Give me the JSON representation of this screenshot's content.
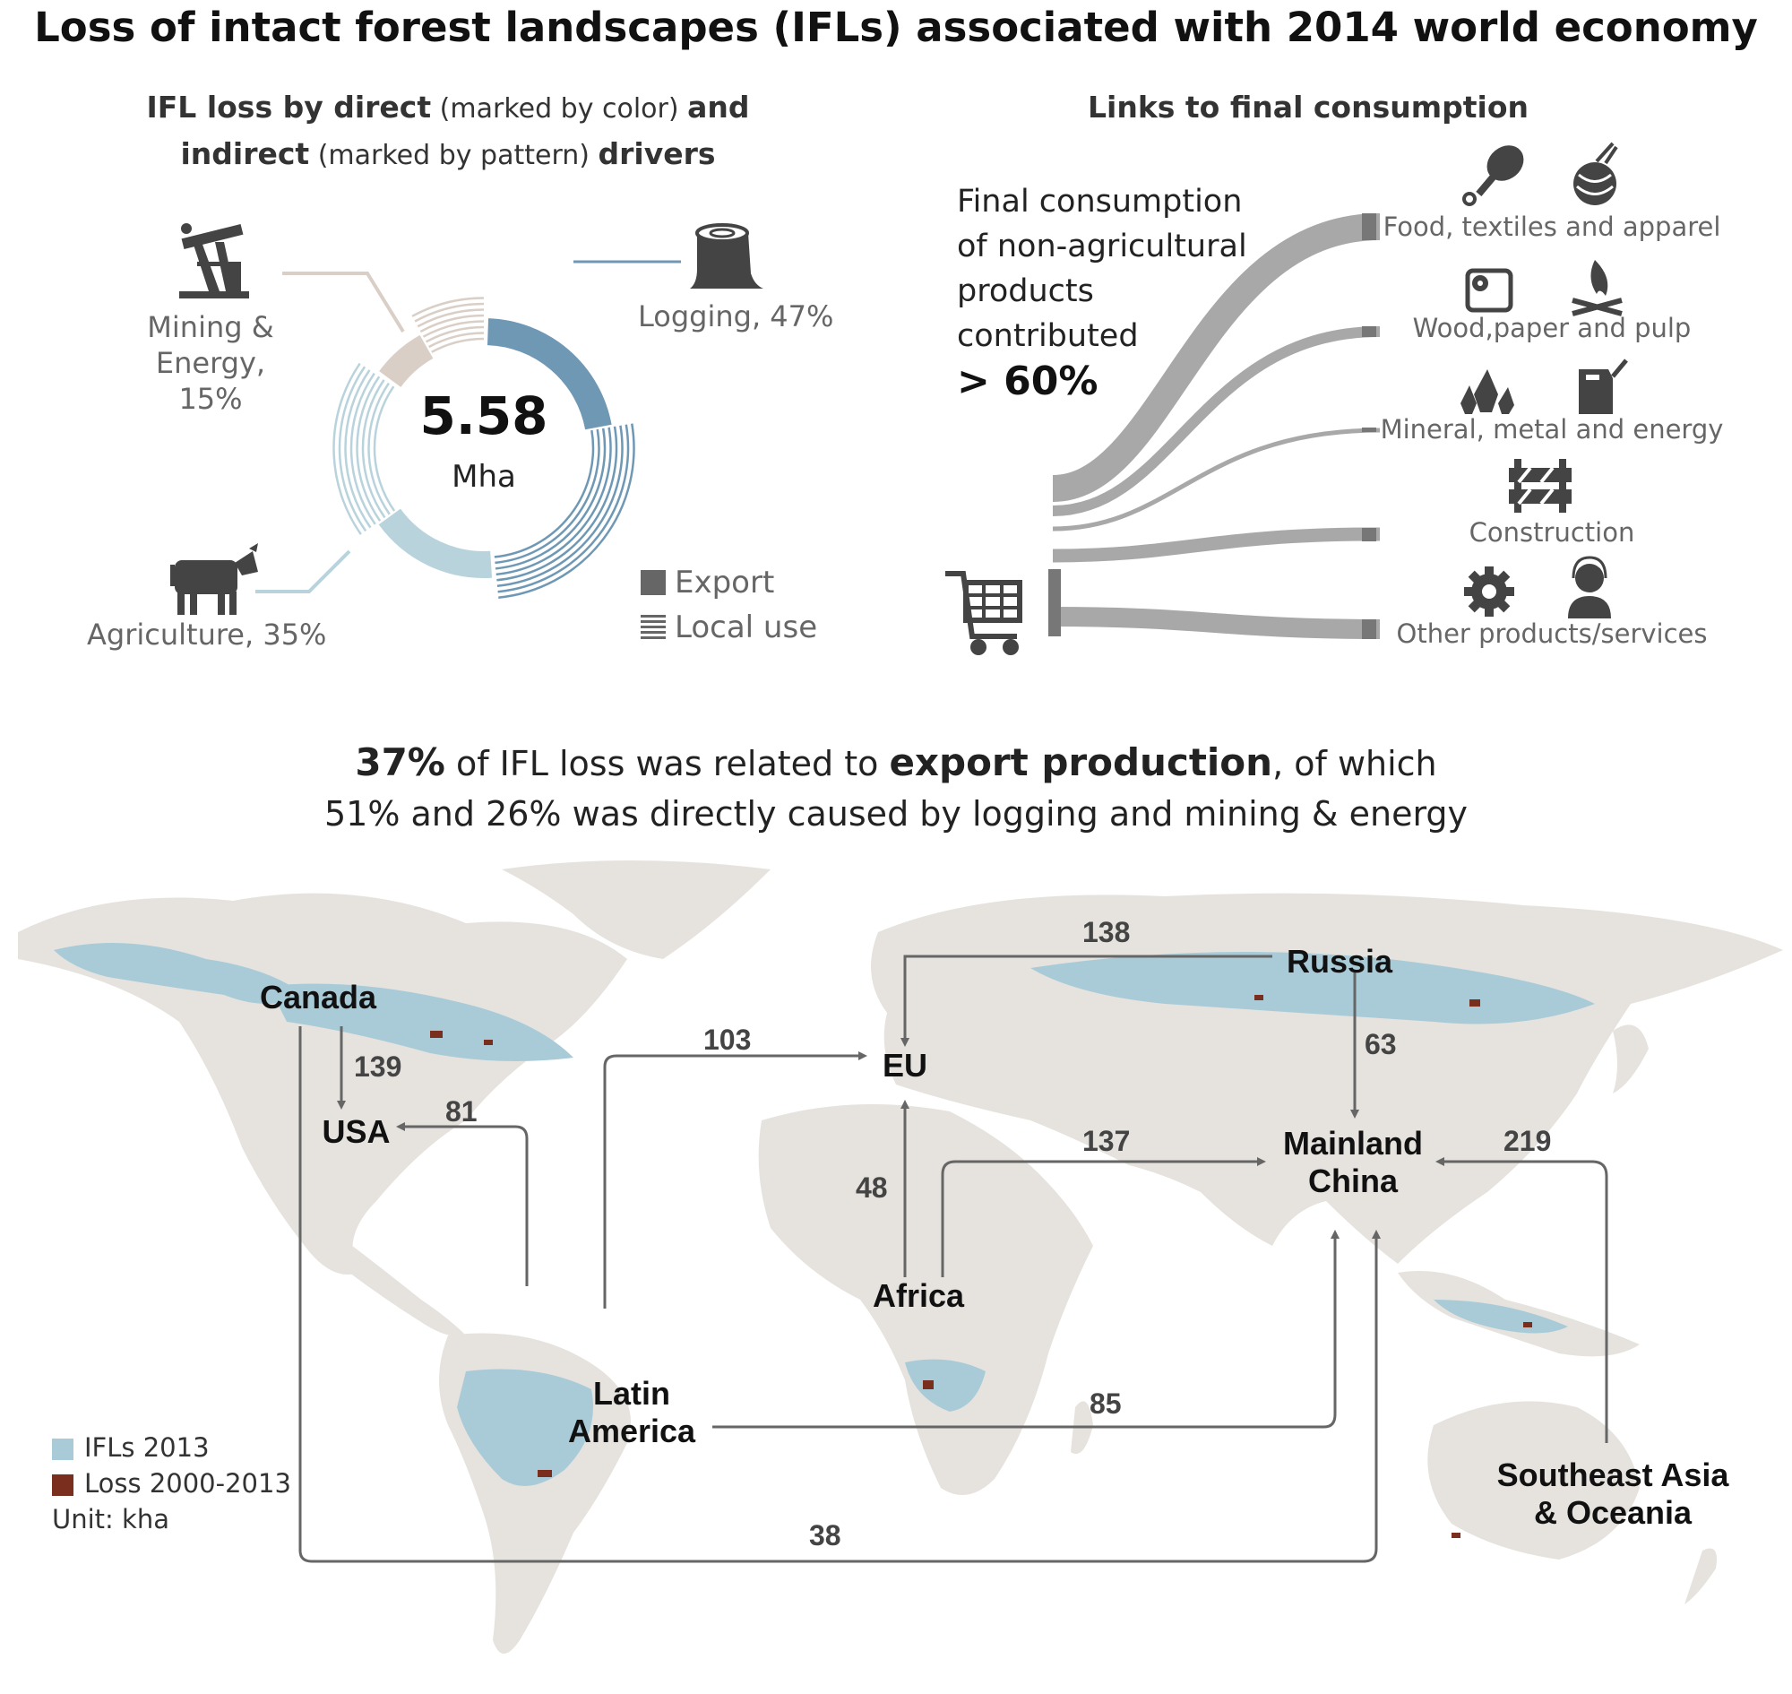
{
  "title": "Loss of intact forest landscapes (IFLs) associated with 2014 world economy",
  "drivers_panel": {
    "title_parts": [
      "IFL loss by direct",
      " (marked by color) ",
      "and",
      "indirect",
      " (marked by pattern) ",
      "drivers"
    ],
    "total_value": "5.58",
    "total_unit": "Mha",
    "drivers": [
      {
        "label": "Logging, 47%",
        "share": 47,
        "color": "#6f98b5",
        "icon": "tree-stump-icon"
      },
      {
        "label": "Mining &",
        "label2": "Energy, 15%",
        "share": 15,
        "color": "#d9cfc7",
        "icon": "oil-pump-icon"
      },
      {
        "label": "Agriculture, 35%",
        "share": 35,
        "color": "#b9d3dc",
        "icon": "cow-icon"
      }
    ],
    "legend": [
      {
        "label": "Export",
        "icon": "solid-square-icon"
      },
      {
        "label": "Local use",
        "icon": "striped-square-icon"
      }
    ]
  },
  "consumption_panel": {
    "title": "Links to final consumption",
    "text_lines": [
      "Final consumption",
      "of non-agricultural",
      "products",
      "contributed"
    ],
    "highlight": "> 60%",
    "categories": [
      {
        "label": "Food, textiles and apparel",
        "icons": [
          "chicken-leg-icon",
          "yarn-ball-icon"
        ]
      },
      {
        "label": "Wood,paper and pulp",
        "icons": [
          "toilet-paper-icon",
          "campfire-icon"
        ]
      },
      {
        "label": "Mineral, metal and energy",
        "icons": [
          "crystal-icon",
          "fuel-can-icon"
        ]
      },
      {
        "label": "Construction",
        "icons": [
          "road-barrier-icon"
        ]
      },
      {
        "label": "Other products/services",
        "icons": [
          "gear-icon",
          "support-agent-icon"
        ]
      }
    ],
    "cart_icon": "shopping-cart-icon"
  },
  "headline": {
    "line1_pct": "37%",
    "line1_a": " of IFL loss was related to ",
    "line1_b": "export production",
    "line1_c": ", of which",
    "line2": "51% and 26% was directly caused by logging and mining & energy"
  },
  "map": {
    "regions": {
      "canada": "Canada",
      "usa": "USA",
      "eu": "EU",
      "russia": "Russia",
      "china_1": "Mainland",
      "china_2": "China",
      "africa": "Africa",
      "latam_1": "Latin",
      "latam_2": "America",
      "sea_1": "Southeast Asia",
      "sea_2": "& Oceania"
    },
    "flows": [
      {
        "from": "Russia",
        "to": "EU",
        "value": "138"
      },
      {
        "from": "Latin America",
        "to": "EU",
        "value": "103"
      },
      {
        "from": "Canada",
        "to": "USA",
        "value": "139"
      },
      {
        "from": "Latin America",
        "to": "USA",
        "value": "81"
      },
      {
        "from": "Russia",
        "to": "Mainland China",
        "value": "63"
      },
      {
        "from": "Africa",
        "to": "Mainland China",
        "value": "137"
      },
      {
        "from": "Southeast Asia & Oceania",
        "to": "Mainland China",
        "value": "219"
      },
      {
        "from": "Africa",
        "to": "EU",
        "value": "48"
      },
      {
        "from": "Latin America",
        "to": "Mainland China",
        "value": "85"
      },
      {
        "from": "Canada",
        "to": "Mainland China",
        "value": "38"
      }
    ],
    "legend": [
      {
        "label": "IFLs 2013",
        "color": "#a9cbd8"
      },
      {
        "label": "Loss 2000-2013",
        "color": "#7a2e1e"
      }
    ],
    "unit": "Unit: kha",
    "colors": {
      "land": "#e6e3df",
      "ifl": "#a9cbd8",
      "loss": "#7a2e1e",
      "arrow": "#666666"
    }
  }
}
